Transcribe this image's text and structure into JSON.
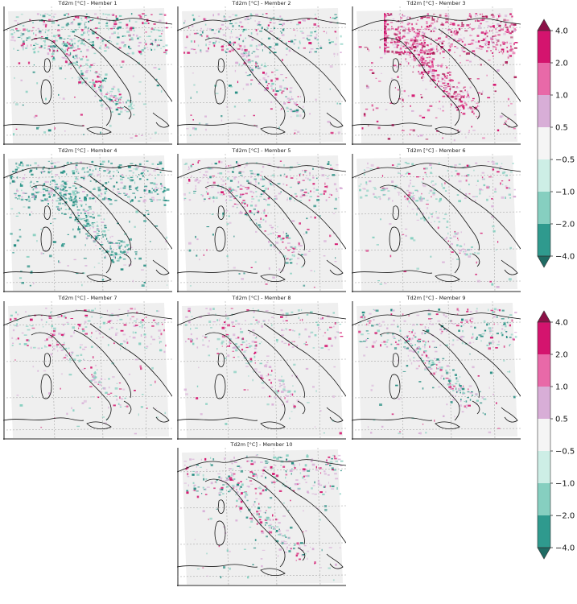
{
  "panels": [
    {
      "title": "Td2m [°C] - Member 1",
      "pattern": "mixed-green-dominant"
    },
    {
      "title": "Td2m [°C] - Member 2",
      "pattern": "mixed"
    },
    {
      "title": "Td2m [°C] - Member 3",
      "pattern": "pink-dominant"
    },
    {
      "title": "Td2m [°C] - Member 4",
      "pattern": "green-dominant"
    },
    {
      "title": "Td2m [°C] - Member 5",
      "pattern": "mixed"
    },
    {
      "title": "Td2m [°C] - Member 6",
      "pattern": "mixed-light"
    },
    {
      "title": "Td2m [°C] - Member 7",
      "pattern": "mixed-light"
    },
    {
      "title": "Td2m [°C] - Member 8",
      "pattern": "mixed-light"
    },
    {
      "title": "Td2m [°C] - Member 9",
      "pattern": "mixed"
    },
    {
      "title": "Td2m [°C] - Member 10",
      "pattern": "mixed"
    }
  ],
  "colorbar": {
    "labels": [
      "4.0",
      "2.0",
      "1.0",
      "0.5",
      "−0.5",
      "−1.0",
      "−2.0",
      "−4.0"
    ],
    "colors": [
      "#d4146e",
      "#e869a8",
      "#d8aed7",
      "#f5f5f5",
      "#cdeee6",
      "#86cfc0",
      "#2f9a8e"
    ],
    "extend_high": "#8b1147",
    "extend_low": "#1f6b63"
  },
  "map_style": {
    "domain_fill": "#efefef",
    "coast": "#111111",
    "grid": "#9a9a9a",
    "strong_pos": "#d4146e",
    "weak_pos": "#d8aed7",
    "strong_neg": "#1f8a7e",
    "weak_neg": "#86cfc0"
  }
}
